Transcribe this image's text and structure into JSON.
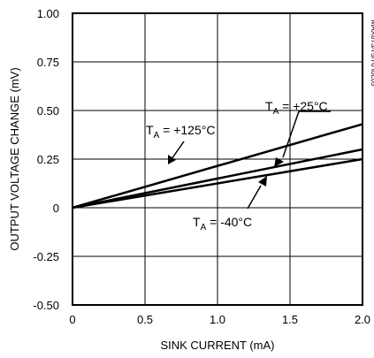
{
  "chart_data": {
    "type": "line",
    "title": "",
    "xlabel": "SINK CURRENT (mA)",
    "ylabel": "OUTPUT VOLTAGE CHANGE (mV)",
    "xlim": [
      0,
      2.0
    ],
    "ylim": [
      -0.5,
      1.0
    ],
    "x_ticks": [
      "0",
      "0.5",
      "1.0",
      "1.5",
      "2.0"
    ],
    "y_ticks": [
      "1.00",
      "0.75",
      "0.50",
      "0.25",
      "0",
      "-0.25",
      "-0.50"
    ],
    "grid": true,
    "series": [
      {
        "name": "T_A = +125°C",
        "x": [
          0,
          2.0
        ],
        "y": [
          0,
          0.43
        ]
      },
      {
        "name": "T_A = +25°C",
        "x": [
          0,
          2.0
        ],
        "y": [
          0,
          0.3
        ]
      },
      {
        "name": "T_A = -40°C",
        "x": [
          0,
          2.0
        ],
        "y": [
          0,
          0.25
        ]
      }
    ],
    "annotations": [
      {
        "prefix": "T",
        "sub": "A",
        "suffix": " = +125°C"
      },
      {
        "prefix": "T",
        "sub": "A",
        "suffix": " = +25°C"
      },
      {
        "prefix": "T",
        "sub": "A",
        "suffix": " = -40°C"
      }
    ],
    "side_id": "MAX873/75/76 toc05"
  }
}
